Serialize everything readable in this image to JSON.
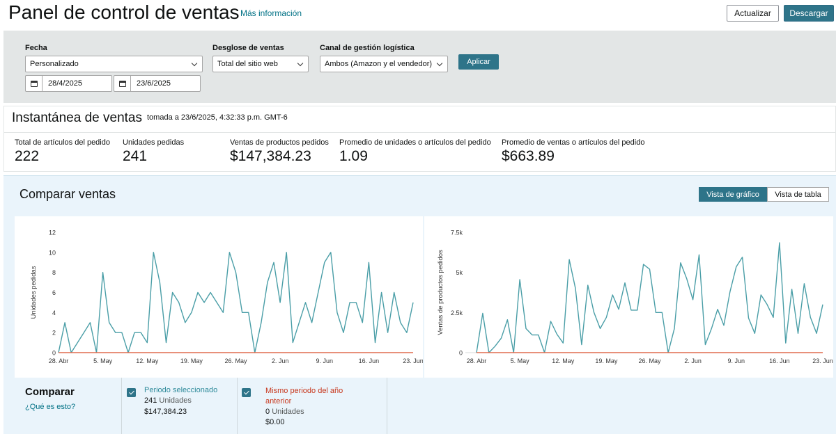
{
  "header": {
    "title": "Panel de control de ventas",
    "more_info": "Más información",
    "refresh_label": "Actualizar",
    "download_label": "Descargar"
  },
  "filters": {
    "date_label": "Fecha",
    "date_range_value": "Personalizado",
    "start_date": "28/4/2025",
    "end_date": "23/6/2025",
    "breakdown_label": "Desglose de ventas",
    "breakdown_value": "Total del sitio web",
    "channel_label": "Canal de gestión logística",
    "channel_value": "Ambos (Amazon y el vendedor)",
    "apply_label": "Aplicar"
  },
  "snapshot": {
    "title": "Instantánea de ventas",
    "timestamp": "tomada a 23/6/2025, 4:32:33 p.m. GMT-6",
    "metrics": [
      {
        "label": "Total de artículos del pedido",
        "value": "222"
      },
      {
        "label": "Unidades pedidas",
        "value": "241"
      },
      {
        "label": "Ventas de productos pedidos",
        "value": "$147,384.23"
      },
      {
        "label": "Promedio de unidades o artículos del pedido",
        "value": "1.09"
      },
      {
        "label": "Promedio de ventas o artículos del pedido",
        "value": "$663.89"
      }
    ]
  },
  "compare": {
    "title": "Comparar ventas",
    "view_chart": "Vista de gráfico",
    "view_table": "Vista de tabla",
    "legend_title": "Comparar",
    "help_link": "¿Qué es esto?",
    "selected": {
      "name": "Periodo seleccionado",
      "units_value": "241",
      "units_word": "Unidades",
      "sales": "$147,384.23"
    },
    "previous": {
      "name": "Mismo periodo del año anterior",
      "units_value": "0",
      "units_word": "Unidades",
      "sales": "$0.00"
    }
  },
  "colors": {
    "accent": "#2e7489",
    "current_series": "#4a9ea7",
    "previous_series": "#e06c4f"
  },
  "chart_data": [
    {
      "type": "line",
      "ylabel": "Unidades pedidas",
      "xlabel": "",
      "ylim": [
        0,
        12
      ],
      "yticks": [
        0,
        2,
        4,
        6,
        8,
        10,
        12
      ],
      "ytick_labels": [
        "0",
        "2",
        "4",
        "6",
        "8",
        "10",
        "12"
      ],
      "xtick_labels": [
        "28. Abr",
        "5. May",
        "12. May",
        "19. May",
        "26. May",
        "2. Jun",
        "9. Jun",
        "16. Jun",
        "23. Jun"
      ],
      "x_count": 57,
      "series": [
        {
          "name": "Periodo seleccionado",
          "values": [
            0,
            3,
            0,
            1,
            2,
            3,
            0,
            8,
            3,
            2,
            2,
            0,
            2,
            2,
            1,
            10,
            7,
            1,
            6,
            5,
            3,
            4,
            6,
            5,
            6,
            5,
            4,
            10,
            8,
            4,
            4,
            0,
            3,
            7,
            9,
            5,
            10,
            1,
            3,
            5,
            3,
            6,
            9,
            10,
            4,
            2,
            5,
            5,
            3,
            9,
            1,
            6,
            2,
            6,
            3,
            2,
            5
          ]
        },
        {
          "name": "Mismo periodo del año anterior",
          "values": [
            0,
            0,
            0,
            0,
            0,
            0,
            0,
            0,
            0,
            0,
            0,
            0,
            0,
            0,
            0,
            0,
            0,
            0,
            0,
            0,
            0,
            0,
            0,
            0,
            0,
            0,
            0,
            0,
            0,
            0,
            0,
            0,
            0,
            0,
            0,
            0,
            0,
            0,
            0,
            0,
            0,
            0,
            0,
            0,
            0,
            0,
            0,
            0,
            0,
            0,
            0,
            0,
            0,
            0,
            0,
            0,
            0
          ]
        }
      ]
    },
    {
      "type": "line",
      "ylabel": "Ventas de productos pedidos",
      "xlabel": "",
      "ylim": [
        0,
        7500
      ],
      "yticks": [
        0,
        2500,
        5000,
        7500
      ],
      "ytick_labels": [
        "0",
        "2.5k",
        "5k",
        "7.5k"
      ],
      "xtick_labels": [
        "28. Abr",
        "5. May",
        "12. May",
        "19. May",
        "26. May",
        "2. Jun",
        "9. Jun",
        "16. Jun",
        "23. Jun"
      ],
      "x_count": 57,
      "series": [
        {
          "name": "Periodo seleccionado",
          "values": [
            0,
            2450,
            0,
            400,
            900,
            2050,
            0,
            4550,
            1500,
            1100,
            1100,
            0,
            1950,
            1150,
            600,
            5800,
            4000,
            500,
            4200,
            2500,
            1500,
            2200,
            3600,
            2700,
            4350,
            2650,
            2650,
            5500,
            5200,
            2500,
            2500,
            0,
            1500,
            5600,
            4600,
            3300,
            6100,
            500,
            1500,
            2700,
            1700,
            3800,
            5350,
            5950,
            2150,
            1200,
            3600,
            3000,
            2200,
            6850,
            600,
            3950,
            1200,
            4300,
            2200,
            1200,
            3000
          ]
        },
        {
          "name": "Mismo periodo del año anterior",
          "values": [
            0,
            0,
            0,
            0,
            0,
            0,
            0,
            0,
            0,
            0,
            0,
            0,
            0,
            0,
            0,
            0,
            0,
            0,
            0,
            0,
            0,
            0,
            0,
            0,
            0,
            0,
            0,
            0,
            0,
            0,
            0,
            0,
            0,
            0,
            0,
            0,
            0,
            0,
            0,
            0,
            0,
            0,
            0,
            0,
            0,
            0,
            0,
            0,
            0,
            0,
            0,
            0,
            0,
            0,
            0,
            0,
            0
          ]
        }
      ]
    }
  ]
}
